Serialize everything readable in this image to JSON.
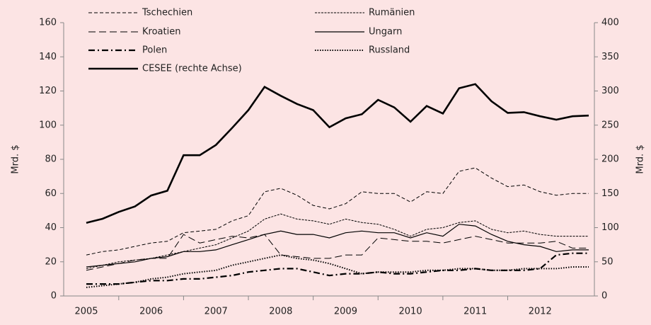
{
  "chart_data": {
    "type": "line",
    "y_label": "Mrd. $",
    "y2_label": "Mrd. $",
    "categories": [
      "2005",
      null,
      null,
      null,
      "2006",
      null,
      null,
      null,
      "2007",
      null,
      null,
      null,
      "2008",
      null,
      null,
      null,
      "2009",
      null,
      null,
      null,
      "2010",
      null,
      null,
      null,
      "2011",
      null,
      null,
      null,
      "2012",
      null,
      null,
      null
    ],
    "ylim": [
      0,
      160
    ],
    "yticks": [
      0,
      20,
      40,
      60,
      80,
      100,
      120,
      140,
      160
    ],
    "y2lim": [
      0,
      400
    ],
    "y2ticks": [
      0,
      50,
      100,
      150,
      200,
      250,
      300,
      350,
      400
    ],
    "series": [
      {
        "name": "Tschechien",
        "color": "#000000",
        "dash": "5,3",
        "width": 1,
        "values": [
          24,
          26,
          27,
          29,
          31,
          32,
          37,
          38,
          39,
          44,
          47,
          61,
          63,
          59,
          53,
          51,
          54,
          61,
          60,
          60,
          55,
          61,
          60,
          73,
          75,
          69,
          64,
          65,
          61,
          59,
          60,
          60
        ]
      },
      {
        "name": "Rumänien",
        "color": "#000000",
        "dash": "3,1.5",
        "width": 1,
        "values": [
          16,
          18,
          20,
          21,
          22,
          24,
          26,
          28,
          30,
          34,
          38,
          45,
          48,
          45,
          44,
          42,
          45,
          43,
          42,
          39,
          35,
          39,
          40,
          43,
          44,
          39,
          37,
          38,
          36,
          35,
          35,
          35
        ]
      },
      {
        "name": "Kroatien",
        "color": "#000000",
        "dash": "10,5",
        "width": 1,
        "values": [
          15,
          17,
          19,
          21,
          22,
          22,
          36,
          31,
          33,
          35,
          34,
          36,
          24,
          23,
          22,
          22,
          24,
          24,
          34,
          33,
          32,
          32,
          31,
          33,
          35,
          33,
          31,
          31,
          31,
          32,
          28,
          28
        ]
      },
      {
        "name": "Ungarn",
        "color": "#000000",
        "dash": "none",
        "width": 1.2,
        "values": [
          17,
          18,
          19,
          20,
          22,
          23,
          26,
          26,
          27,
          30,
          33,
          36,
          38,
          36,
          36,
          34,
          37,
          38,
          37,
          37,
          34,
          37,
          35,
          42,
          41,
          36,
          32,
          30,
          29,
          26,
          27,
          27
        ]
      },
      {
        "name": "Polen",
        "color": "#000000",
        "dash": "9,4,2,4",
        "width": 2.2,
        "values": [
          7,
          7,
          7,
          8,
          9,
          9,
          10,
          10,
          11,
          12,
          14,
          15,
          16,
          16,
          14,
          12,
          13,
          13,
          14,
          13,
          13,
          14,
          15,
          15,
          16,
          15,
          15,
          15,
          16,
          24,
          25,
          25
        ]
      },
      {
        "name": "Russland",
        "color": "#000000",
        "dash": "1.5,2",
        "width": 2,
        "values": [
          5,
          6,
          7,
          8,
          10,
          11,
          13,
          14,
          15,
          18,
          20,
          22,
          24,
          22,
          21,
          19,
          16,
          13,
          14,
          14,
          14,
          15,
          15,
          16,
          16,
          15,
          15,
          16,
          16,
          16,
          17,
          17
        ]
      },
      {
        "name": "CESEE (rechte Achse)",
        "color": "#000000",
        "dash": "none",
        "width": 2.6,
        "axis": "y2",
        "values": [
          107,
          113,
          123,
          131,
          147,
          154,
          206,
          206,
          221,
          246,
          272,
          306,
          293,
          281,
          272,
          247,
          260,
          266,
          287,
          276,
          255,
          278,
          267,
          304,
          310,
          285,
          268,
          269,
          263,
          258,
          263,
          264
        ]
      }
    ]
  }
}
